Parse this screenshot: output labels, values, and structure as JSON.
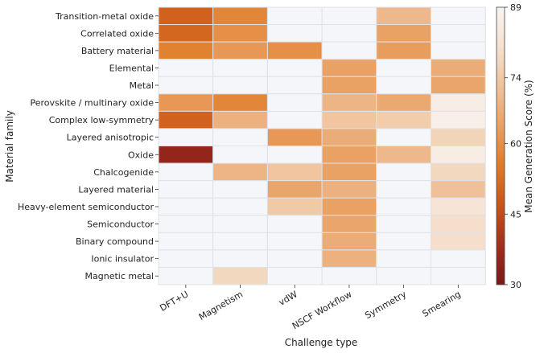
{
  "chart_data": {
    "type": "heatmap",
    "xlabel": "Challenge type",
    "ylabel": "Material family",
    "x_categories": [
      "DFT+U",
      "Magnetism",
      "vdW",
      "NSCF Workflow",
      "Symmetry",
      "Smearing"
    ],
    "y_categories": [
      "Transition-metal oxide",
      "Correlated oxide",
      "Battery material",
      "Elemental",
      "Metal",
      "Perovskite / multinary oxide",
      "Complex low-symmetry",
      "Layered anisotropic",
      "Oxide",
      "Chalcogenide",
      "Layered material",
      "Heavy-element semiconductor",
      "Semiconductor",
      "Binary compound",
      "Ionic insulator",
      "Magnetic metal"
    ],
    "values": [
      [
        50,
        58,
        null,
        null,
        70,
        null
      ],
      [
        51,
        60,
        null,
        null,
        64,
        null
      ],
      [
        57,
        62,
        60,
        null,
        63,
        null
      ],
      [
        null,
        null,
        null,
        64,
        null,
        67
      ],
      [
        null,
        null,
        null,
        64,
        null,
        65
      ],
      [
        62,
        58,
        null,
        69,
        66,
        86
      ],
      [
        50,
        68,
        null,
        73,
        75,
        87
      ],
      [
        null,
        null,
        62,
        67,
        null,
        77
      ],
      [
        35,
        null,
        null,
        64,
        70,
        86
      ],
      [
        null,
        69,
        73,
        64,
        null,
        78
      ],
      [
        null,
        null,
        65,
        68,
        null,
        72
      ],
      [
        null,
        null,
        74,
        64,
        null,
        82
      ],
      [
        null,
        null,
        null,
        65,
        null,
        80
      ],
      [
        null,
        null,
        null,
        67,
        null,
        80
      ],
      [
        null,
        null,
        null,
        68,
        null,
        null
      ],
      [
        null,
        78,
        null,
        null,
        null,
        null
      ]
    ],
    "colorbar": {
      "label": "Mean Generation Score (%)",
      "min": 30,
      "max": 89,
      "ticks": [
        30,
        45,
        60,
        74,
        89
      ]
    },
    "missing_color": "#f5f6f9",
    "grid_color": "#dde2ea",
    "colormap": [
      "#7b1719",
      "#a32e1c",
      "#c85419",
      "#df7a25",
      "#e9a062",
      "#efc29a",
      "#f5e1d0",
      "#f9f4f1"
    ]
  }
}
